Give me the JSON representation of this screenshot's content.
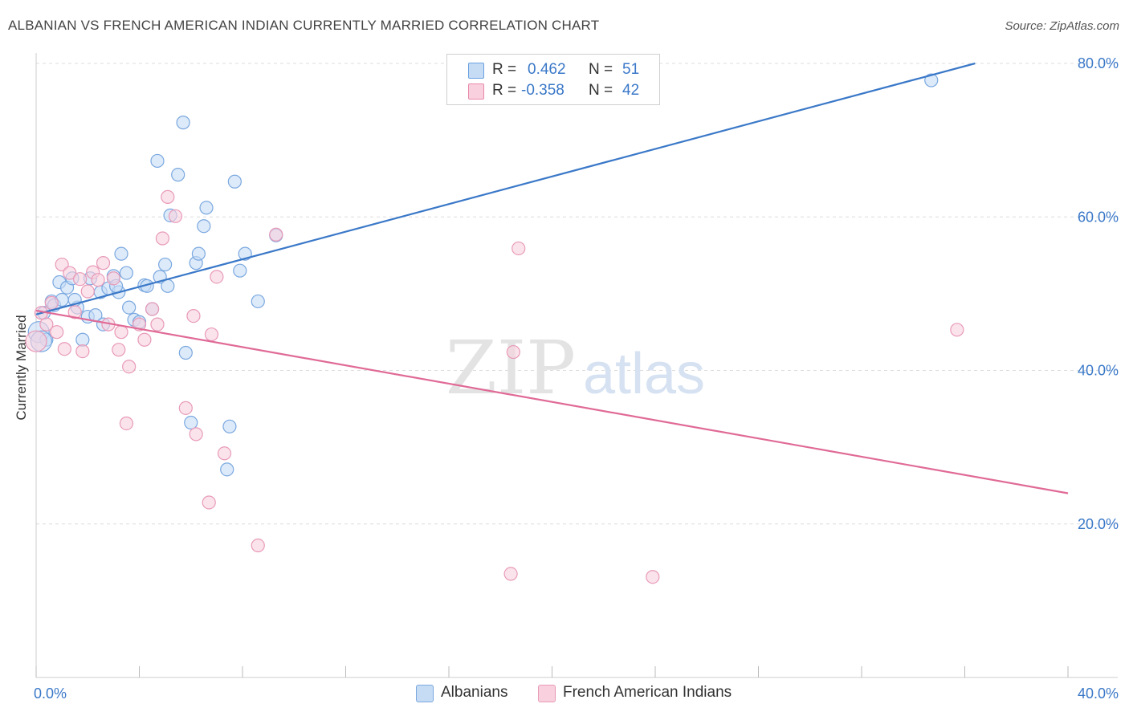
{
  "title": "ALBANIAN VS FRENCH AMERICAN INDIAN CURRENTLY MARRIED CORRELATION CHART",
  "source": "Source: ZipAtlas.com",
  "watermark": {
    "zip": "ZIP",
    "atlas": "atlas"
  },
  "legend": {
    "r_label": "R =",
    "n_label": "N =",
    "rows": [
      {
        "r": "0.462",
        "n": "51",
        "color": "#6aa0e0",
        "fill": "#c6dcf5"
      },
      {
        "r": "-0.358",
        "n": "42",
        "color": "#e889aa",
        "fill": "#f8d0de"
      }
    ]
  },
  "chart_data": {
    "type": "scatter",
    "title": "ALBANIAN VS FRENCH AMERICAN INDIAN CURRENTLY MARRIED CORRELATION CHART",
    "xlabel": "",
    "ylabel": "Currently Married",
    "xlim": [
      0,
      40
    ],
    "ylim": [
      0,
      80
    ],
    "x_tick_labels": [
      {
        "value": 0,
        "label": "0.0%"
      },
      {
        "value": 40,
        "label": "40.0%"
      }
    ],
    "y_tick_labels": [
      {
        "value": 20,
        "label": "20.0%"
      },
      {
        "value": 40,
        "label": "40.0%"
      },
      {
        "value": 60,
        "label": "60.0%"
      },
      {
        "value": 80,
        "label": "80.0%"
      }
    ],
    "series": [
      {
        "name": "Albanians",
        "color": "#3a78c8",
        "point_stroke": "#7aa8e0",
        "point_fill": "#c6dcf5",
        "trendline": {
          "x": [
            0,
            36.4
          ],
          "y": [
            47.3,
            80.0
          ]
        },
        "points": [
          [
            0.1,
            45
          ],
          [
            0.3,
            47.5
          ],
          [
            0.4,
            44
          ],
          [
            0.6,
            49
          ],
          [
            0.7,
            48.5
          ],
          [
            0.9,
            51.5
          ],
          [
            1.0,
            49.2
          ],
          [
            1.2,
            50.8
          ],
          [
            1.4,
            52
          ],
          [
            1.6,
            48.2
          ],
          [
            1.8,
            44
          ],
          [
            2.0,
            47
          ],
          [
            2.1,
            52
          ],
          [
            2.3,
            47.2
          ],
          [
            2.5,
            50.2
          ],
          [
            2.6,
            46
          ],
          [
            2.8,
            50.7
          ],
          [
            3.0,
            52.3
          ],
          [
            3.2,
            50.2
          ],
          [
            3.3,
            55.2
          ],
          [
            3.5,
            52.7
          ],
          [
            3.6,
            48.2
          ],
          [
            3.8,
            46.6
          ],
          [
            4.0,
            46.3
          ],
          [
            4.2,
            51.1
          ],
          [
            4.3,
            51
          ],
          [
            4.5,
            48
          ],
          [
            4.7,
            67.3
          ],
          [
            4.8,
            52.2
          ],
          [
            5.0,
            53.8
          ],
          [
            5.1,
            51
          ],
          [
            5.2,
            60.2
          ],
          [
            5.5,
            65.5
          ],
          [
            5.7,
            72.3
          ],
          [
            5.8,
            42.3
          ],
          [
            6.0,
            33.2
          ],
          [
            6.2,
            54
          ],
          [
            6.3,
            55.2
          ],
          [
            6.5,
            58.8
          ],
          [
            6.6,
            61.2
          ],
          [
            7.4,
            27.1
          ],
          [
            7.5,
            32.7
          ],
          [
            7.7,
            64.6
          ],
          [
            7.9,
            53
          ],
          [
            8.1,
            55.2
          ],
          [
            8.6,
            49
          ],
          [
            9.3,
            57.6
          ],
          [
            34.7,
            77.8
          ],
          [
            0.2,
            43.8
          ],
          [
            1.5,
            49.2
          ],
          [
            3.1,
            51
          ]
        ]
      },
      {
        "name": "French American Indians",
        "color": "#e06a96",
        "point_stroke": "#e89ab8",
        "point_fill": "#f8d0de",
        "trendline": {
          "x": [
            0,
            40
          ],
          "y": [
            47.8,
            24.0
          ]
        },
        "points": [
          [
            0.0,
            43.8
          ],
          [
            0.2,
            47.5
          ],
          [
            0.4,
            46
          ],
          [
            0.6,
            48.8
          ],
          [
            0.8,
            45
          ],
          [
            1.0,
            53.8
          ],
          [
            1.1,
            42.8
          ],
          [
            1.3,
            52.7
          ],
          [
            1.5,
            47.6
          ],
          [
            1.7,
            51.9
          ],
          [
            1.8,
            42.5
          ],
          [
            2.0,
            50.3
          ],
          [
            2.2,
            52.8
          ],
          [
            2.4,
            51.8
          ],
          [
            2.6,
            54
          ],
          [
            2.8,
            46
          ],
          [
            3.0,
            52
          ],
          [
            3.2,
            42.7
          ],
          [
            3.3,
            45
          ],
          [
            3.5,
            33.1
          ],
          [
            3.6,
            40.5
          ],
          [
            4.0,
            46
          ],
          [
            4.2,
            44
          ],
          [
            4.5,
            48
          ],
          [
            4.7,
            46
          ],
          [
            4.9,
            57.2
          ],
          [
            5.1,
            62.6
          ],
          [
            5.4,
            60.1
          ],
          [
            5.8,
            35.1
          ],
          [
            6.1,
            47.1
          ],
          [
            6.2,
            31.7
          ],
          [
            6.7,
            22.8
          ],
          [
            6.8,
            44.7
          ],
          [
            7.0,
            52.2
          ],
          [
            7.3,
            29.2
          ],
          [
            8.6,
            17.2
          ],
          [
            9.3,
            57.7
          ],
          [
            18.4,
            13.5
          ],
          [
            18.5,
            42.4
          ],
          [
            18.7,
            55.9
          ],
          [
            23.9,
            13.1
          ],
          [
            35.7,
            45.3
          ]
        ]
      }
    ]
  }
}
